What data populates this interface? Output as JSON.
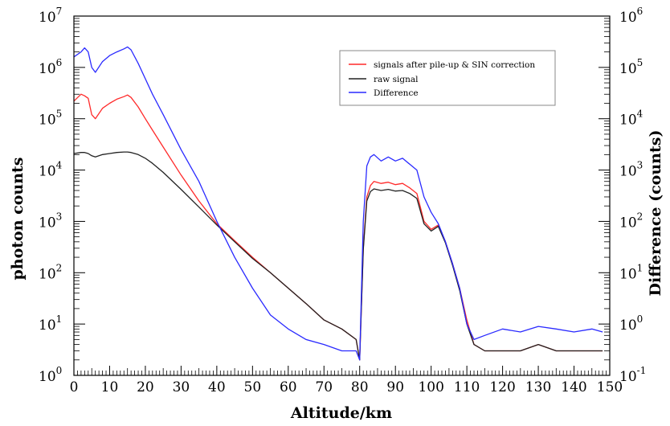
{
  "chart_data": {
    "type": "line",
    "title": "",
    "xlabel": "Altitude/km",
    "ylabel": "photon counts",
    "ylabel_right": "Difference (counts)",
    "xlim": [
      0,
      150
    ],
    "ylim": [
      1,
      10000000
    ],
    "yscale": "log",
    "ylim_right": [
      0.1,
      1000000
    ],
    "yscale_right": "log",
    "x_ticks": [
      0,
      10,
      20,
      30,
      40,
      50,
      60,
      70,
      80,
      90,
      100,
      110,
      120,
      130,
      140,
      150
    ],
    "y_ticks": [
      {
        "base": "10",
        "exp": "0"
      },
      {
        "base": "10",
        "exp": "1"
      },
      {
        "base": "10",
        "exp": "2"
      },
      {
        "base": "10",
        "exp": "3"
      },
      {
        "base": "10",
        "exp": "4"
      },
      {
        "base": "10",
        "exp": "5"
      },
      {
        "base": "10",
        "exp": "6"
      },
      {
        "base": "10",
        "exp": "7"
      }
    ],
    "y_ticks_right": [
      {
        "base": "10",
        "exp": "-1"
      },
      {
        "base": "10",
        "exp": "0"
      },
      {
        "base": "10",
        "exp": "1"
      },
      {
        "base": "10",
        "exp": "2"
      },
      {
        "base": "10",
        "exp": "3"
      },
      {
        "base": "10",
        "exp": "4"
      },
      {
        "base": "10",
        "exp": "5"
      },
      {
        "base": "10",
        "exp": "6"
      }
    ],
    "grid": false,
    "legend_position": "top-right",
    "series": [
      {
        "name": "signals after pile-up & SIN correction",
        "color": "#ff2a2a",
        "axis": "left",
        "x": [
          0,
          2,
          3,
          4,
          5,
          6,
          8,
          10,
          12,
          14,
          15,
          16,
          18,
          20,
          22,
          25,
          30,
          35,
          40,
          45,
          50,
          55,
          60,
          65,
          70,
          75,
          79,
          80,
          81,
          82,
          83,
          84,
          86,
          88,
          90,
          92,
          94,
          96,
          98,
          100,
          102,
          104,
          106,
          108,
          110,
          112,
          115,
          120,
          125,
          130,
          135,
          140,
          145,
          148
        ],
        "y": [
          220000,
          300000,
          280000,
          250000,
          120000,
          100000,
          160000,
          200000,
          240000,
          270000,
          290000,
          260000,
          170000,
          100000,
          60000,
          28000,
          8000,
          2500,
          900,
          420,
          200,
          100,
          50,
          25,
          12,
          8,
          5,
          2,
          300,
          3000,
          5000,
          6000,
          5500,
          5800,
          5200,
          5500,
          4500,
          3500,
          1000,
          700,
          850,
          400,
          150,
          50,
          12,
          4,
          3,
          3,
          3,
          4,
          3,
          3,
          3,
          3
        ]
      },
      {
        "name": "raw signal",
        "color": "#222222",
        "axis": "left",
        "x": [
          0,
          2,
          3,
          4,
          5,
          6,
          8,
          10,
          12,
          14,
          15,
          16,
          18,
          20,
          22,
          25,
          30,
          35,
          40,
          45,
          50,
          55,
          60,
          65,
          70,
          75,
          79,
          80,
          81,
          82,
          83,
          84,
          86,
          88,
          90,
          92,
          94,
          96,
          98,
          100,
          102,
          104,
          106,
          108,
          110,
          112,
          115,
          120,
          125,
          130,
          135,
          140,
          145,
          148
        ],
        "y": [
          21000,
          22000,
          22000,
          21000,
          19000,
          18000,
          20000,
          21000,
          22000,
          22500,
          22500,
          22000,
          20000,
          17000,
          13500,
          9000,
          4200,
          1900,
          850,
          400,
          190,
          100,
          50,
          25,
          12,
          8,
          5,
          2,
          280,
          2500,
          3800,
          4300,
          4000,
          4200,
          3900,
          4000,
          3500,
          2800,
          900,
          650,
          800,
          380,
          140,
          45,
          10,
          4,
          3,
          3,
          3,
          4,
          3,
          3,
          3,
          3
        ]
      },
      {
        "name": "Difference",
        "color": "#2a2aff",
        "axis": "right",
        "x": [
          0,
          2,
          3,
          4,
          5,
          6,
          8,
          10,
          12,
          14,
          15,
          16,
          18,
          20,
          22,
          25,
          30,
          35,
          40,
          45,
          50,
          55,
          60,
          65,
          70,
          75,
          79,
          80,
          81,
          82,
          83,
          84,
          86,
          88,
          90,
          92,
          94,
          96,
          98,
          100,
          102,
          104,
          106,
          108,
          110,
          112,
          115,
          120,
          125,
          130,
          135,
          140,
          145,
          148
        ],
        "y": [
          160000,
          200000,
          240000,
          200000,
          100000,
          80000,
          130000,
          170000,
          200000,
          230000,
          250000,
          220000,
          120000,
          60000,
          30000,
          12000,
          2500,
          600,
          100,
          20,
          5,
          1.5,
          0.8,
          0.5,
          0.4,
          0.3,
          0.3,
          0.2,
          100,
          1200,
          1800,
          2000,
          1500,
          1800,
          1500,
          1700,
          1300,
          1000,
          300,
          150,
          90,
          40,
          15,
          5,
          1,
          0.5,
          0.6,
          0.8,
          0.7,
          0.9,
          0.8,
          0.7,
          0.8,
          0.7
        ]
      }
    ]
  }
}
